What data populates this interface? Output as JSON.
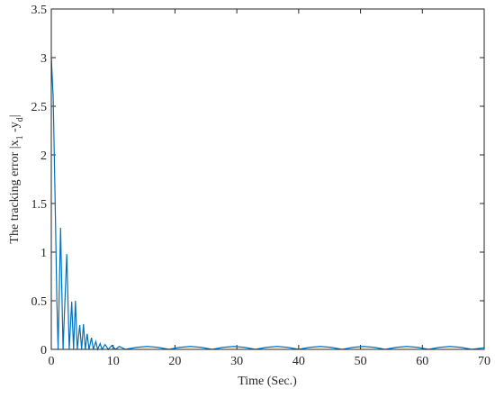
{
  "chart_data": {
    "type": "line",
    "xlabel": "Time (Sec.)",
    "ylabel_parts": [
      "The tracking error |x",
      "1",
      " -y",
      "d",
      "|"
    ],
    "xlim": [
      0,
      70
    ],
    "xticks": [
      0,
      10,
      20,
      30,
      40,
      50,
      60,
      70
    ],
    "ylim": [
      0,
      3.5
    ],
    "yticks": [
      0,
      0.5,
      1,
      1.5,
      2,
      2.5,
      3,
      3.5
    ],
    "grid": false,
    "series": [
      {
        "color": "#0072bd",
        "x": [
          0,
          0.3,
          0.6,
          0.9,
          1.1,
          1.5,
          1.9,
          2.5,
          2.9,
          3.3,
          3.6,
          3.9,
          4.2,
          4.6,
          4.9,
          5.2,
          5.5,
          5.8,
          6.1,
          6.5,
          6.8,
          7.2,
          7.5,
          7.9,
          8.2,
          8.7,
          9.2,
          9.8,
          10.4,
          11,
          12,
          13.75,
          15.5,
          17.25,
          19,
          20.75,
          22.5,
          24.25,
          26,
          27.75,
          29.5,
          31.25,
          33,
          34.75,
          36.5,
          38.25,
          40,
          41.75,
          43.5,
          45.25,
          47,
          48.75,
          50.5,
          52.25,
          54,
          55.75,
          57.5,
          59.25,
          61,
          62.75,
          64.5,
          66.25,
          68,
          70
        ],
        "values": [
          3,
          2.6,
          1.6,
          0.5,
          0,
          1.25,
          0,
          0.98,
          0,
          0.49,
          0,
          0.5,
          0,
          0.25,
          0,
          0.26,
          0,
          0.16,
          0,
          0.12,
          0,
          0.08,
          0,
          0.06,
          0,
          0.05,
          0,
          0.04,
          0,
          0.03,
          0,
          0.021,
          0.03,
          0.021,
          0,
          0.021,
          0.03,
          0.021,
          0,
          0.021,
          0.03,
          0.021,
          0,
          0.021,
          0.03,
          0.021,
          0,
          0.021,
          0.03,
          0.021,
          0,
          0.021,
          0.03,
          0.021,
          0,
          0.021,
          0.03,
          0.021,
          0,
          0.021,
          0.03,
          0.021,
          0,
          0.017
        ]
      }
    ]
  }
}
